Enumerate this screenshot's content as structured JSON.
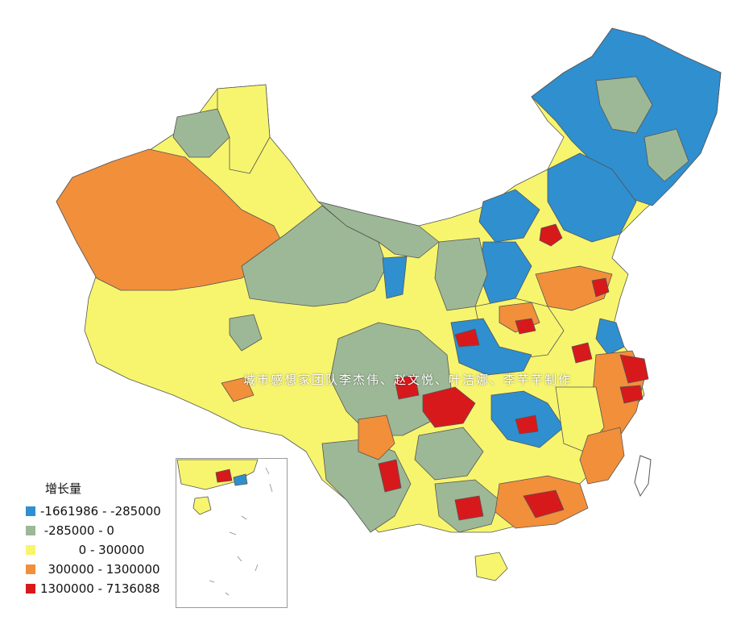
{
  "legend": {
    "title": "增长量",
    "classes": [
      {
        "label": "-1661986 - -285000",
        "color": "#2f8fcf"
      },
      {
        "label": " -285000 - 0",
        "color": "#9db896"
      },
      {
        "label": "          0 - 300000",
        "color": "#f7f56e"
      },
      {
        "label": "  300000 - 1300000",
        "color": "#f28f3b"
      },
      {
        "label": "1300000 - 7136088",
        "color": "#d7191c"
      }
    ]
  },
  "watermark": "城市感想家团队李杰伟、赵文悦、叶洁娜、李芊芊制作",
  "colors": {
    "border": "#555555",
    "sea": "#ffffff"
  }
}
